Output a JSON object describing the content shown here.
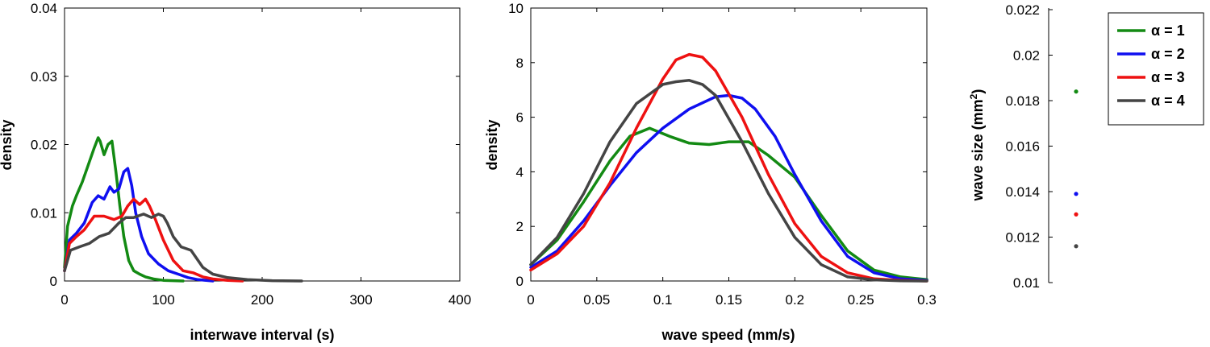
{
  "colors": {
    "alpha1": "#138A13",
    "alpha2": "#0F0FF0",
    "alpha3": "#EE1111",
    "alpha4": "#444444"
  },
  "chart_data": [
    {
      "type": "line",
      "xlabel": "interwave interval (s)",
      "ylabel": "density",
      "xlim": [
        0,
        400
      ],
      "ylim": [
        0,
        0.04
      ],
      "xticks": [
        "0",
        "100",
        "200",
        "300",
        "400"
      ],
      "yticks": [
        "0",
        "0.01",
        "0.02",
        "0.03",
        "0.04"
      ],
      "series": [
        {
          "name": "α = 1",
          "color": "#138A13",
          "x": [
            0,
            3,
            8,
            12,
            18,
            24,
            30,
            34,
            36,
            40,
            44,
            48,
            52,
            56,
            60,
            65,
            70,
            76,
            82,
            90,
            100,
            110,
            120
          ],
          "y": [
            0.002,
            0.008,
            0.011,
            0.0125,
            0.0145,
            0.017,
            0.0195,
            0.021,
            0.0205,
            0.0185,
            0.02,
            0.0205,
            0.016,
            0.011,
            0.0065,
            0.003,
            0.0015,
            0.001,
            0.0006,
            0.0003,
            0.0001,
            5e-05,
            0
          ]
        },
        {
          "name": "α = 2",
          "color": "#0F0FF0",
          "x": [
            0,
            5,
            12,
            20,
            28,
            34,
            40,
            46,
            50,
            55,
            60,
            64,
            68,
            72,
            78,
            85,
            95,
            105,
            115,
            125,
            135,
            150
          ],
          "y": [
            0.0015,
            0.006,
            0.007,
            0.0085,
            0.0115,
            0.0125,
            0.012,
            0.0138,
            0.013,
            0.0135,
            0.016,
            0.0165,
            0.014,
            0.01,
            0.0065,
            0.004,
            0.0025,
            0.0015,
            0.001,
            0.0005,
            0.0002,
            0
          ]
        },
        {
          "name": "α = 3",
          "color": "#EE1111",
          "x": [
            0,
            5,
            12,
            20,
            30,
            40,
            50,
            58,
            64,
            70,
            76,
            82,
            86,
            92,
            100,
            110,
            120,
            130,
            140,
            150,
            165,
            180
          ],
          "y": [
            0.0015,
            0.0055,
            0.0065,
            0.0075,
            0.0095,
            0.0095,
            0.009,
            0.0095,
            0.011,
            0.012,
            0.0112,
            0.012,
            0.011,
            0.009,
            0.006,
            0.003,
            0.0015,
            0.0012,
            0.0006,
            0.0003,
            0.0001,
            0
          ]
        },
        {
          "name": "α = 4",
          "color": "#444444",
          "x": [
            0,
            6,
            15,
            25,
            35,
            45,
            55,
            62,
            70,
            80,
            88,
            95,
            100,
            104,
            110,
            118,
            128,
            140,
            150,
            165,
            185,
            210,
            240
          ],
          "y": [
            0.0015,
            0.0045,
            0.005,
            0.0055,
            0.0065,
            0.007,
            0.0085,
            0.0093,
            0.0093,
            0.0098,
            0.0093,
            0.0098,
            0.0095,
            0.0085,
            0.0065,
            0.005,
            0.0045,
            0.002,
            0.001,
            0.0005,
            0.0002,
            5e-05,
            0
          ]
        }
      ]
    },
    {
      "type": "line",
      "xlabel": "wave speed (mm/s)",
      "ylabel": "density",
      "xlim": [
        0,
        0.3
      ],
      "ylim": [
        0,
        10
      ],
      "xticks": [
        "0",
        "0.05",
        "0.1",
        "0.15",
        "0.2",
        "0.25",
        "0.3"
      ],
      "yticks": [
        "0",
        "2",
        "4",
        "6",
        "8",
        "10"
      ],
      "series": [
        {
          "name": "α = 1",
          "color": "#138A13",
          "x": [
            0,
            0.02,
            0.04,
            0.06,
            0.075,
            0.09,
            0.105,
            0.12,
            0.135,
            0.15,
            0.165,
            0.18,
            0.2,
            0.22,
            0.24,
            0.26,
            0.28,
            0.3
          ],
          "y": [
            0.6,
            1.5,
            2.9,
            4.4,
            5.3,
            5.6,
            5.3,
            5.05,
            5.0,
            5.1,
            5.1,
            4.6,
            3.8,
            2.4,
            1.1,
            0.4,
            0.15,
            0.05
          ]
        },
        {
          "name": "α = 2",
          "color": "#0F0FF0",
          "x": [
            0,
            0.02,
            0.04,
            0.06,
            0.08,
            0.1,
            0.12,
            0.14,
            0.15,
            0.16,
            0.17,
            0.185,
            0.2,
            0.22,
            0.24,
            0.26,
            0.28,
            0.3
          ],
          "y": [
            0.5,
            1.1,
            2.2,
            3.5,
            4.7,
            5.6,
            6.3,
            6.75,
            6.8,
            6.7,
            6.3,
            5.3,
            3.9,
            2.2,
            0.9,
            0.3,
            0.08,
            0.02
          ]
        },
        {
          "name": "α = 3",
          "color": "#EE1111",
          "x": [
            0,
            0.02,
            0.04,
            0.06,
            0.08,
            0.1,
            0.11,
            0.12,
            0.13,
            0.14,
            0.16,
            0.18,
            0.2,
            0.22,
            0.24,
            0.26,
            0.28,
            0.3
          ],
          "y": [
            0.4,
            1.0,
            2.0,
            3.6,
            5.6,
            7.4,
            8.1,
            8.3,
            8.2,
            7.7,
            6.0,
            3.9,
            2.1,
            0.9,
            0.3,
            0.08,
            0.02,
            0
          ]
        },
        {
          "name": "α = 4",
          "color": "#444444",
          "x": [
            0,
            0.02,
            0.04,
            0.06,
            0.08,
            0.1,
            0.11,
            0.12,
            0.13,
            0.14,
            0.16,
            0.18,
            0.2,
            0.22,
            0.24,
            0.26,
            0.28,
            0.3
          ],
          "y": [
            0.6,
            1.6,
            3.2,
            5.1,
            6.5,
            7.2,
            7.3,
            7.35,
            7.2,
            6.8,
            5.1,
            3.2,
            1.6,
            0.6,
            0.15,
            0.04,
            0.01,
            0
          ]
        }
      ]
    },
    {
      "type": "scatter",
      "ylabel": "wave size (mm",
      "ylabel_sup": "2",
      "ylabel_suffix": ")",
      "ylim": [
        0.01,
        0.022
      ],
      "yticks": [
        "0.01",
        "0.012",
        "0.014",
        "0.016",
        "0.018",
        "0.02",
        "0.022"
      ],
      "points": [
        {
          "name": "α = 1",
          "value": 0.0184,
          "color": "#138A13"
        },
        {
          "name": "α = 2",
          "value": 0.0139,
          "color": "#0F0FF0"
        },
        {
          "name": "α = 3",
          "value": 0.013,
          "color": "#EE1111"
        },
        {
          "name": "α = 4",
          "value": 0.0116,
          "color": "#444444"
        }
      ]
    }
  ],
  "legend": {
    "entries": [
      {
        "label": "α = 1",
        "color": "#138A13"
      },
      {
        "label": "α = 2",
        "color": "#0F0FF0"
      },
      {
        "label": "α = 3",
        "color": "#EE1111"
      },
      {
        "label": "α = 4",
        "color": "#444444"
      }
    ]
  }
}
